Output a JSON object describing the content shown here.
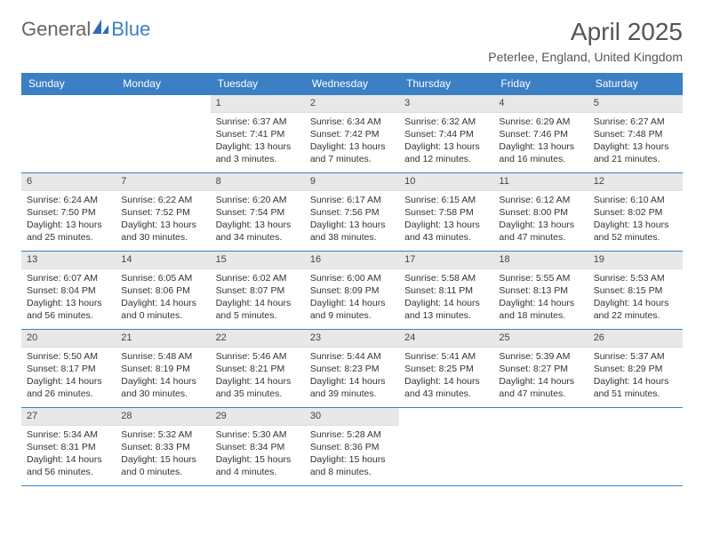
{
  "brand": {
    "part1": "General",
    "part2": "Blue"
  },
  "title": "April 2025",
  "subtitle": "Peterlee, England, United Kingdom",
  "colors": {
    "header_bg": "#3b7fc4",
    "header_text": "#ffffff",
    "daynum_bg": "#e8e8e8",
    "border": "#3b7fc4",
    "body_text": "#333333"
  },
  "table": {
    "columns": [
      "Sunday",
      "Monday",
      "Tuesday",
      "Wednesday",
      "Thursday",
      "Friday",
      "Saturday"
    ],
    "weeks": [
      [
        null,
        null,
        {
          "n": "1",
          "sunrise": "Sunrise: 6:37 AM",
          "sunset": "Sunset: 7:41 PM",
          "daylight": "Daylight: 13 hours and 3 minutes."
        },
        {
          "n": "2",
          "sunrise": "Sunrise: 6:34 AM",
          "sunset": "Sunset: 7:42 PM",
          "daylight": "Daylight: 13 hours and 7 minutes."
        },
        {
          "n": "3",
          "sunrise": "Sunrise: 6:32 AM",
          "sunset": "Sunset: 7:44 PM",
          "daylight": "Daylight: 13 hours and 12 minutes."
        },
        {
          "n": "4",
          "sunrise": "Sunrise: 6:29 AM",
          "sunset": "Sunset: 7:46 PM",
          "daylight": "Daylight: 13 hours and 16 minutes."
        },
        {
          "n": "5",
          "sunrise": "Sunrise: 6:27 AM",
          "sunset": "Sunset: 7:48 PM",
          "daylight": "Daylight: 13 hours and 21 minutes."
        }
      ],
      [
        {
          "n": "6",
          "sunrise": "Sunrise: 6:24 AM",
          "sunset": "Sunset: 7:50 PM",
          "daylight": "Daylight: 13 hours and 25 minutes."
        },
        {
          "n": "7",
          "sunrise": "Sunrise: 6:22 AM",
          "sunset": "Sunset: 7:52 PM",
          "daylight": "Daylight: 13 hours and 30 minutes."
        },
        {
          "n": "8",
          "sunrise": "Sunrise: 6:20 AM",
          "sunset": "Sunset: 7:54 PM",
          "daylight": "Daylight: 13 hours and 34 minutes."
        },
        {
          "n": "9",
          "sunrise": "Sunrise: 6:17 AM",
          "sunset": "Sunset: 7:56 PM",
          "daylight": "Daylight: 13 hours and 38 minutes."
        },
        {
          "n": "10",
          "sunrise": "Sunrise: 6:15 AM",
          "sunset": "Sunset: 7:58 PM",
          "daylight": "Daylight: 13 hours and 43 minutes."
        },
        {
          "n": "11",
          "sunrise": "Sunrise: 6:12 AM",
          "sunset": "Sunset: 8:00 PM",
          "daylight": "Daylight: 13 hours and 47 minutes."
        },
        {
          "n": "12",
          "sunrise": "Sunrise: 6:10 AM",
          "sunset": "Sunset: 8:02 PM",
          "daylight": "Daylight: 13 hours and 52 minutes."
        }
      ],
      [
        {
          "n": "13",
          "sunrise": "Sunrise: 6:07 AM",
          "sunset": "Sunset: 8:04 PM",
          "daylight": "Daylight: 13 hours and 56 minutes."
        },
        {
          "n": "14",
          "sunrise": "Sunrise: 6:05 AM",
          "sunset": "Sunset: 8:06 PM",
          "daylight": "Daylight: 14 hours and 0 minutes."
        },
        {
          "n": "15",
          "sunrise": "Sunrise: 6:02 AM",
          "sunset": "Sunset: 8:07 PM",
          "daylight": "Daylight: 14 hours and 5 minutes."
        },
        {
          "n": "16",
          "sunrise": "Sunrise: 6:00 AM",
          "sunset": "Sunset: 8:09 PM",
          "daylight": "Daylight: 14 hours and 9 minutes."
        },
        {
          "n": "17",
          "sunrise": "Sunrise: 5:58 AM",
          "sunset": "Sunset: 8:11 PM",
          "daylight": "Daylight: 14 hours and 13 minutes."
        },
        {
          "n": "18",
          "sunrise": "Sunrise: 5:55 AM",
          "sunset": "Sunset: 8:13 PM",
          "daylight": "Daylight: 14 hours and 18 minutes."
        },
        {
          "n": "19",
          "sunrise": "Sunrise: 5:53 AM",
          "sunset": "Sunset: 8:15 PM",
          "daylight": "Daylight: 14 hours and 22 minutes."
        }
      ],
      [
        {
          "n": "20",
          "sunrise": "Sunrise: 5:50 AM",
          "sunset": "Sunset: 8:17 PM",
          "daylight": "Daylight: 14 hours and 26 minutes."
        },
        {
          "n": "21",
          "sunrise": "Sunrise: 5:48 AM",
          "sunset": "Sunset: 8:19 PM",
          "daylight": "Daylight: 14 hours and 30 minutes."
        },
        {
          "n": "22",
          "sunrise": "Sunrise: 5:46 AM",
          "sunset": "Sunset: 8:21 PM",
          "daylight": "Daylight: 14 hours and 35 minutes."
        },
        {
          "n": "23",
          "sunrise": "Sunrise: 5:44 AM",
          "sunset": "Sunset: 8:23 PM",
          "daylight": "Daylight: 14 hours and 39 minutes."
        },
        {
          "n": "24",
          "sunrise": "Sunrise: 5:41 AM",
          "sunset": "Sunset: 8:25 PM",
          "daylight": "Daylight: 14 hours and 43 minutes."
        },
        {
          "n": "25",
          "sunrise": "Sunrise: 5:39 AM",
          "sunset": "Sunset: 8:27 PM",
          "daylight": "Daylight: 14 hours and 47 minutes."
        },
        {
          "n": "26",
          "sunrise": "Sunrise: 5:37 AM",
          "sunset": "Sunset: 8:29 PM",
          "daylight": "Daylight: 14 hours and 51 minutes."
        }
      ],
      [
        {
          "n": "27",
          "sunrise": "Sunrise: 5:34 AM",
          "sunset": "Sunset: 8:31 PM",
          "daylight": "Daylight: 14 hours and 56 minutes."
        },
        {
          "n": "28",
          "sunrise": "Sunrise: 5:32 AM",
          "sunset": "Sunset: 8:33 PM",
          "daylight": "Daylight: 15 hours and 0 minutes."
        },
        {
          "n": "29",
          "sunrise": "Sunrise: 5:30 AM",
          "sunset": "Sunset: 8:34 PM",
          "daylight": "Daylight: 15 hours and 4 minutes."
        },
        {
          "n": "30",
          "sunrise": "Sunrise: 5:28 AM",
          "sunset": "Sunset: 8:36 PM",
          "daylight": "Daylight: 15 hours and 8 minutes."
        },
        null,
        null,
        null
      ]
    ]
  }
}
